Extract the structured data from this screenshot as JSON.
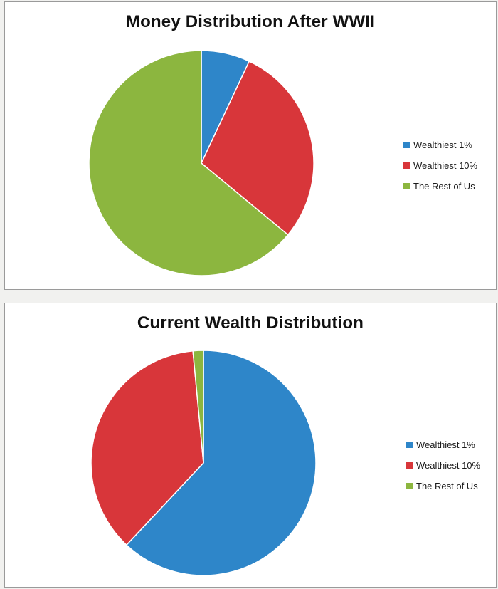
{
  "chart_data": [
    {
      "type": "pie",
      "title": "Money Distribution After WWII",
      "categories": [
        "Wealthiest 1%",
        "Wealthiest 10%",
        "The Rest of Us"
      ],
      "values": [
        7,
        29,
        64
      ],
      "colors": [
        "#2e86c9",
        "#d8363a",
        "#8cb63f"
      ],
      "legend": "right"
    },
    {
      "type": "pie",
      "title": "Current Wealth Distribution",
      "categories": [
        "Wealthiest 1%",
        "Wealthiest 10%",
        "The Rest of Us"
      ],
      "values": [
        62,
        36.5,
        1.5
      ],
      "colors": [
        "#2e86c9",
        "#d8363a",
        "#8cb63f"
      ],
      "legend": "right"
    }
  ]
}
